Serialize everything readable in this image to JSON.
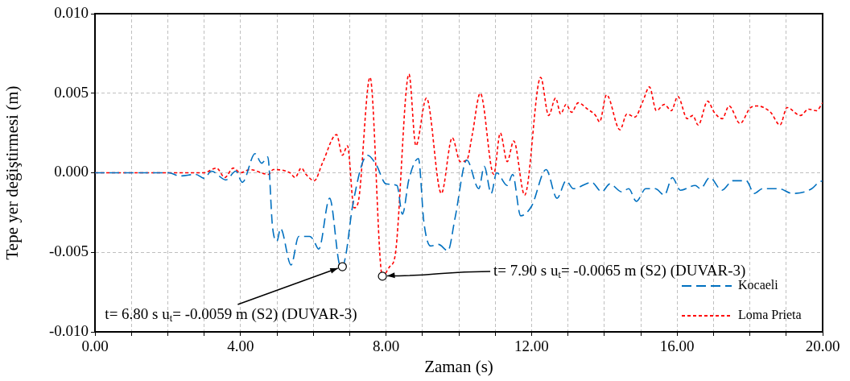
{
  "chart_data": {
    "type": "line",
    "xlabel": "Zaman (s)",
    "ylabel": "Tepe yer değiştirmesi (m)",
    "xlim": [
      0,
      20
    ],
    "xticks": [
      {
        "value": 0,
        "label": "0.00"
      },
      {
        "value": 1,
        "label": null
      },
      {
        "value": 2,
        "label": null
      },
      {
        "value": 3,
        "label": null
      },
      {
        "value": 4,
        "label": "4.00"
      },
      {
        "value": 5,
        "label": null
      },
      {
        "value": 6,
        "label": null
      },
      {
        "value": 7,
        "label": null
      },
      {
        "value": 8,
        "label": "8.00"
      },
      {
        "value": 9,
        "label": null
      },
      {
        "value": 10,
        "label": null
      },
      {
        "value": 11,
        "label": null
      },
      {
        "value": 12,
        "label": "12.00"
      },
      {
        "value": 13,
        "label": null
      },
      {
        "value": 14,
        "label": null
      },
      {
        "value": 15,
        "label": null
      },
      {
        "value": 16,
        "label": "16.00"
      },
      {
        "value": 17,
        "label": null
      },
      {
        "value": 18,
        "label": null
      },
      {
        "value": 19,
        "label": null
      },
      {
        "value": 20,
        "label": "20.00"
      }
    ],
    "ylim": [
      -0.01,
      0.01
    ],
    "yticks": [
      {
        "value": -0.01,
        "label": "-0.010"
      },
      {
        "value": -0.005,
        "label": "-0.005"
      },
      {
        "value": 0,
        "label": "0.000"
      },
      {
        "value": 0.005,
        "label": "0.005"
      },
      {
        "value": 0.01,
        "label": "0.010"
      }
    ],
    "grid": true,
    "legend": "bottom right",
    "marker": "none",
    "series": [
      {
        "name": "Kocaeli",
        "color": "#0070c0",
        "line_style": "dashed",
        "x": [
          0,
          1.5,
          2.03,
          2.33,
          2.77,
          3.0,
          3.2,
          3.6,
          3.87,
          4.05,
          4.4,
          4.58,
          4.75,
          4.88,
          5.0,
          5.1,
          5.39,
          5.6,
          5.9,
          6.0,
          6.15,
          6.45,
          6.75,
          6.8,
          6.9,
          7.08,
          7.49,
          7.73,
          8.0,
          8.3,
          8.45,
          8.63,
          8.89,
          9.04,
          9.22,
          9.44,
          9.7,
          9.9,
          10.22,
          10.55,
          10.7,
          10.89,
          11.04,
          11.33,
          11.48,
          11.7,
          12.0,
          12.4,
          12.7,
          12.95,
          13.15,
          13.65,
          13.93,
          14.15,
          14.48,
          14.67,
          14.88,
          15.14,
          15.4,
          15.65,
          15.87,
          16.09,
          16.5,
          16.64,
          16.9,
          17.23,
          17.53,
          17.9,
          18.12,
          18.35,
          18.8,
          19.17,
          19.7,
          19.89,
          20
        ],
        "values": [
          0,
          0,
          0,
          -0.0002,
          -0.0001,
          -0.00035,
          0.0001,
          -0.00045,
          0.0001,
          -0.0006,
          0.0012,
          0.0006,
          0.001,
          -0.0034,
          -0.0043,
          -0.0035,
          -0.0058,
          -0.004,
          -0.004,
          -0.0042,
          -0.0048,
          -0.0016,
          -0.0059,
          -0.0059,
          -0.0051,
          -0.0021,
          0.0011,
          0.0005,
          -0.0007,
          -0.0008,
          -0.0026,
          -0.0004,
          0.0009,
          -0.0031,
          -0.0046,
          -0.0045,
          -0.0049,
          -0.0028,
          0.0008,
          -0.001,
          0.0004,
          -0.0013,
          0,
          -0.0008,
          -0.0001,
          -0.0027,
          -0.0021,
          0.0002,
          -0.0016,
          -0.0005,
          -0.001,
          -0.0006,
          -0.0012,
          -0.0007,
          -0.0012,
          -0.001,
          -0.0018,
          -0.001,
          -0.001,
          -0.0014,
          -0.0003,
          -0.0011,
          -0.0008,
          -0.001,
          -0.0003,
          -0.0011,
          -0.0005,
          -0.0005,
          -0.0013,
          -0.001,
          -0.001,
          -0.0013,
          -0.001,
          -0.0006,
          -0.0005
        ]
      },
      {
        "name": "Loma Prieta",
        "color": "#ff0000",
        "line_style": "dotted",
        "x": [
          0,
          3.0,
          3.34,
          3.57,
          3.8,
          4.0,
          4.25,
          4.77,
          4.9,
          5.36,
          5.5,
          5.67,
          5.8,
          6.03,
          6.25,
          6.64,
          6.8,
          6.94,
          7.12,
          7.23,
          7.56,
          7.9,
          8.1,
          8.25,
          8.63,
          8.82,
          9.11,
          9.52,
          9.82,
          10.04,
          10.22,
          10.37,
          10.59,
          10.96,
          11.14,
          11.33,
          11.51,
          11.81,
          12.25,
          12.47,
          12.66,
          12.8,
          12.95,
          13.1,
          13.28,
          13.54,
          13.76,
          13.87,
          14.06,
          14.43,
          14.62,
          14.84,
          15.06,
          15.24,
          15.43,
          15.65,
          15.84,
          16.02,
          16.28,
          16.43,
          16.58,
          16.84,
          17.02,
          17.24,
          17.43,
          17.73,
          18.02,
          18.2,
          18.57,
          18.83,
          19.02,
          19.39,
          19.61,
          19.83,
          20
        ],
        "values": [
          0,
          0,
          0.0003,
          -0.0003,
          0.0003,
          0,
          0.0002,
          -0.0001,
          0.0002,
          0,
          -0.0003,
          0.0003,
          -0.0001,
          -0.0005,
          0.0006,
          0.0024,
          0.0011,
          0.0017,
          -0.0022,
          -0.0019,
          0.006,
          -0.0065,
          -0.0059,
          -0.0052,
          0.0062,
          0.0017,
          0.0047,
          -0.0013,
          0.0022,
          0.0007,
          0.0008,
          0.0024,
          0.005,
          -0.0001,
          0.0025,
          0.0007,
          0.002,
          -0.0014,
          0.006,
          0.0036,
          0.0047,
          0.0037,
          0.0043,
          0.0038,
          0.0044,
          0.004,
          0.0036,
          0.0032,
          0.0049,
          0.0027,
          0.0037,
          0.0035,
          0.0045,
          0.0054,
          0.0039,
          0.0043,
          0.0039,
          0.0048,
          0.0034,
          0.0036,
          0.003,
          0.0045,
          0.0038,
          0.0034,
          0.0042,
          0.0031,
          0.0041,
          0.0042,
          0.0038,
          0.003,
          0.0041,
          0.0036,
          0.004,
          0.0039,
          0.0044
        ]
      }
    ],
    "annotations": [
      {
        "text": "t= 6.80 s u$_{t}$= -0.0059 m (S2) (DUVAR-3)",
        "x": 6.8,
        "y": -0.0059
      },
      {
        "text": "t= 7.90 s u$_{t}$= -0.0065 m (S2) (DUVAR-3)",
        "x": 7.9,
        "y": -0.0065
      }
    ]
  }
}
